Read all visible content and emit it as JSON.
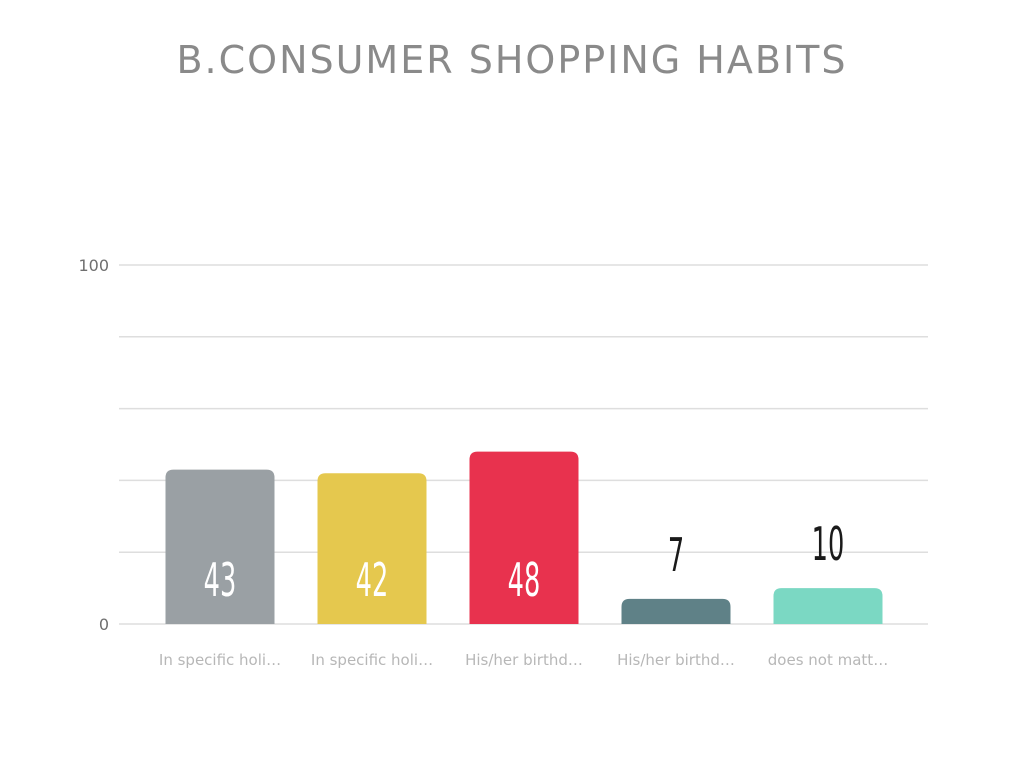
{
  "chart_data": {
    "type": "bar",
    "title": "B.CONSUMER SHOPPING HABITS",
    "xlabel": "",
    "ylabel": "",
    "ylim": [
      0,
      100
    ],
    "y_tick_labels": [
      "0",
      "100"
    ],
    "gridlines": [
      0,
      20,
      40,
      60,
      80,
      100
    ],
    "grid": true,
    "legend": "none",
    "categories": [
      "In specific holi…",
      "In specific holi…",
      "His/her birthd…",
      "His/her birthd…",
      "does not matt…"
    ],
    "values": [
      43,
      42,
      48,
      7,
      10
    ],
    "value_labels": [
      "43",
      "42",
      "48",
      "7",
      "10"
    ],
    "colors": [
      "#9aa0a4",
      "#e5c84e",
      "#e8324e",
      "#5f8187",
      "#7bd8c3"
    ],
    "inside_label_color": "#ffffff",
    "outside_label_color": "#1a1a1a"
  }
}
